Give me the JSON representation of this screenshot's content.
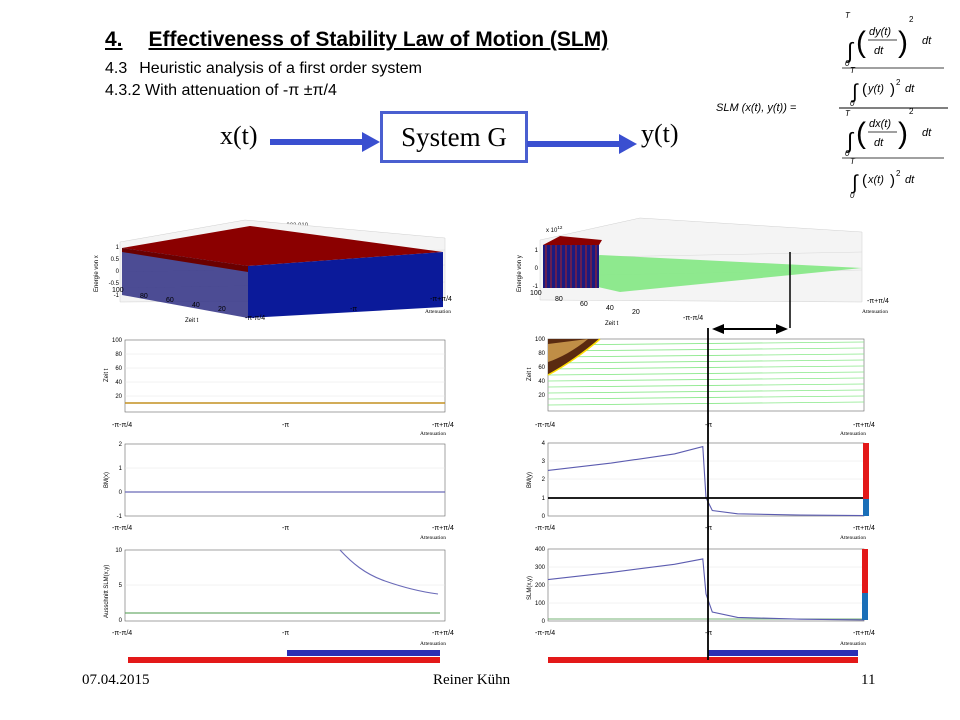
{
  "header": {
    "section_number": "4.",
    "section_title": "Effectiveness of Stability Law of Motion (SLM)",
    "sub1_number": "4.3",
    "sub1_text": "Heuristic analysis of a first order system",
    "sub2_text": "4.3.2 With attenuation of -π ±π/4"
  },
  "system": {
    "input": "x(t)",
    "box": "System G",
    "output": "y(t)"
  },
  "formula": {
    "lhs": "SLM (x(t), y(t)) =",
    "upper_limit": "T",
    "lower_limit": "0",
    "num1": "dy(t)",
    "den1": "dt",
    "num2": "dx(t)",
    "den2": "dt",
    "y_term": "y(t)",
    "x_term": "x(t)",
    "exp": "2",
    "dt": "dt"
  },
  "left_column": {
    "plot3d": {
      "title": "Abbildung 002 010",
      "zlabel": "Energie von x",
      "ylabel": "Zeit t",
      "xlabel": "Attenuation",
      "zticks": [
        "1",
        "0.5",
        "0",
        "-0.5",
        "-1"
      ],
      "yticks": [
        "100",
        "80",
        "60",
        "40",
        "20"
      ],
      "xticks": [
        "-π-π/4",
        "-π",
        "-π+π/4"
      ]
    },
    "plot_zeit": {
      "ylabel": "Zeit t",
      "yticks": [
        "100",
        "80",
        "60",
        "40",
        "20"
      ],
      "xticks": [
        "-π-π/4",
        "-π",
        "-π+π/4"
      ],
      "xlabel": "Attenuation"
    },
    "plot_bm": {
      "ylabel": "BM(x)",
      "yticks": [
        "2",
        "1",
        "0",
        "-1"
      ],
      "xticks": [
        "-π-π/4",
        "-π",
        "-π+π/4"
      ],
      "xlabel": "Attenuation"
    },
    "plot_slm": {
      "ylabel": "Ausschnitt SLM(x,y)",
      "yticks": [
        "10",
        "5",
        "0"
      ],
      "xticks": [
        "-π-π/4",
        "-π",
        "-π+π/4"
      ],
      "xlabel": "Attenuation"
    }
  },
  "right_column": {
    "plot3d": {
      "scale": "x 10",
      "scale_exp": "12",
      "zlabel": "Energie von y",
      "ylabel": "Zeit t",
      "xlabel": "Attenuation",
      "zticks": [
        "1",
        "0",
        "-1"
      ],
      "yticks": [
        "100",
        "80",
        "60",
        "40",
        "20"
      ],
      "xticks": [
        "-π-π/4",
        "-π",
        "-π+π/4"
      ]
    },
    "plot_zeit": {
      "ylabel": "Zeit t",
      "yticks": [
        "100",
        "80",
        "60",
        "40",
        "20"
      ],
      "xticks": [
        "-π-π/4",
        "-π",
        "-π+π/4"
      ],
      "xlabel": "Attenuation"
    },
    "plot_bm": {
      "ylabel": "BM(y)",
      "yticks": [
        "4",
        "3",
        "2",
        "1",
        "0"
      ],
      "xticks": [
        "-π-π/4",
        "-π",
        "-π+π/4"
      ],
      "xlabel": "Attenuation"
    },
    "plot_slm": {
      "ylabel": "SLM(x,y)",
      "yticks": [
        "400",
        "300",
        "200",
        "100",
        "0"
      ],
      "xticks": [
        "-π-π/4",
        "-π",
        "-π+π/4"
      ],
      "xlabel": "Attenuation"
    }
  },
  "colors": {
    "red": "#e31818",
    "blue": "#2a2fb5",
    "system_border": "#4a5fd0",
    "curve": "#5c5cb0",
    "green": "#88e888"
  },
  "footer": {
    "date": "07.04.2015",
    "author": "Reiner Kühn",
    "page": "11"
  },
  "chart_data": [
    {
      "type": "line",
      "title": "",
      "xlabel": "Attenuation",
      "ylabel": "BM(x)",
      "x_range": [
        "-π-π/4",
        "-π+π/4"
      ],
      "ylim": [
        -1,
        2
      ],
      "series": [
        {
          "name": "BM(x)",
          "description": "constant",
          "values": [
            0,
            0
          ]
        }
      ]
    },
    {
      "type": "line",
      "title": "",
      "xlabel": "Attenuation",
      "ylabel": "Ausschnitt SLM(x,y)",
      "ylim": [
        0,
        10
      ],
      "series": [
        {
          "name": "SLM(x,y)",
          "x_fraction": [
            0.62,
            0.7,
            0.8,
            0.9,
            1.0
          ],
          "values": [
            10,
            7.5,
            6.0,
            5.0,
            4.2
          ]
        },
        {
          "name": "baseline",
          "values": [
            1,
            1
          ]
        }
      ]
    },
    {
      "type": "line",
      "title": "",
      "xlabel": "Attenuation",
      "ylabel": "BM(y)",
      "ylim": [
        0,
        4
      ],
      "series": [
        {
          "name": "BM(y)",
          "x_fraction": [
            0,
            0.2,
            0.4,
            0.49,
            0.5,
            0.52,
            0.6,
            0.8,
            1.0
          ],
          "values": [
            2.5,
            2.9,
            3.4,
            3.8,
            1.0,
            0.3,
            0.12,
            0.05,
            0.02
          ]
        }
      ]
    },
    {
      "type": "line",
      "title": "",
      "xlabel": "Attenuation",
      "ylabel": "SLM(x,y)",
      "ylim": [
        0,
        400
      ],
      "series": [
        {
          "name": "SLM(x,y)",
          "x_fraction": [
            0,
            0.2,
            0.4,
            0.49,
            0.5,
            0.52,
            0.6,
            0.8,
            1.0
          ],
          "values": [
            230,
            270,
            315,
            345,
            150,
            50,
            20,
            10,
            6
          ]
        }
      ]
    }
  ]
}
